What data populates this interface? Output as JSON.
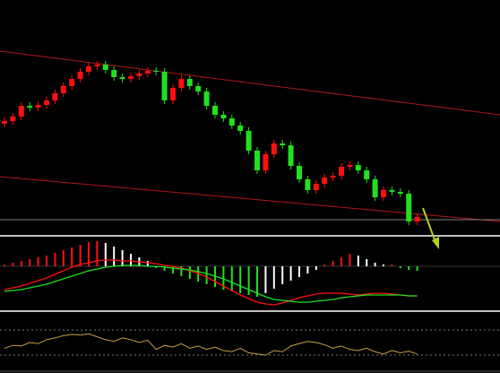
{
  "chart_data": [
    {
      "type": "candlestick",
      "ylim": [
        0,
        262
      ],
      "up_color": "#ff1010",
      "down_color": "#20e020",
      "open": [
        124,
        127,
        132,
        144,
        142,
        145,
        150,
        158,
        166,
        174,
        182,
        188,
        190,
        184,
        176,
        174,
        177,
        180,
        183,
        182,
        150,
        164,
        174,
        166,
        160,
        144,
        134,
        130,
        122,
        116,
        94,
        72,
        90,
        102,
        100,
        77,
        62,
        50,
        57,
        64,
        66,
        76,
        78,
        72,
        62,
        42,
        50,
        48,
        46,
        15
      ],
      "high": [
        131,
        136,
        148,
        148,
        149,
        154,
        162,
        170,
        178,
        186,
        192,
        194,
        194,
        188,
        180,
        181,
        184,
        187,
        187,
        186,
        168,
        178,
        178,
        170,
        164,
        148,
        138,
        134,
        126,
        120,
        98,
        94,
        106,
        106,
        104,
        81,
        66,
        61,
        68,
        70,
        80,
        82,
        82,
        76,
        66,
        54,
        54,
        52,
        50,
        24
      ],
      "low": [
        120,
        123,
        128,
        138,
        138,
        141,
        146,
        154,
        162,
        170,
        178,
        184,
        180,
        172,
        170,
        170,
        173,
        176,
        178,
        146,
        146,
        160,
        162,
        156,
        140,
        130,
        126,
        118,
        112,
        90,
        68,
        68,
        86,
        96,
        73,
        58,
        46,
        46,
        53,
        60,
        62,
        72,
        68,
        58,
        38,
        38,
        44,
        42,
        11,
        11
      ],
      "close": [
        127,
        132,
        144,
        142,
        145,
        150,
        158,
        166,
        174,
        182,
        188,
        190,
        184,
        176,
        174,
        177,
        180,
        183,
        182,
        150,
        164,
        174,
        166,
        160,
        144,
        134,
        130,
        122,
        116,
        94,
        72,
        90,
        102,
        100,
        77,
        62,
        50,
        57,
        64,
        66,
        76,
        78,
        72,
        62,
        42,
        50,
        48,
        46,
        15,
        20
      ]
    },
    {
      "type": "macd",
      "ylim": [
        -48,
        32
      ],
      "rise_color": "#ff1010",
      "fall_color": "#ffffff",
      "neg_color": "#20e020",
      "histogram": [
        2,
        4,
        6,
        8,
        10,
        12,
        15,
        18,
        21,
        24,
        27,
        28,
        26,
        22,
        18,
        14,
        10,
        6,
        -2,
        -5,
        -8,
        -11,
        -14,
        -17,
        -20,
        -23,
        -26,
        -28,
        -30,
        -32,
        -34,
        -30,
        -25,
        -20,
        -16,
        -12,
        -8,
        -4,
        2,
        6,
        10,
        14,
        12,
        8,
        4,
        2,
        2,
        -2,
        -4,
        -5
      ],
      "series": [
        {
          "color": "#ff1010",
          "values": [
            -26,
            -24,
            -22,
            -19,
            -16,
            -13,
            -9,
            -5,
            -1,
            2,
            4,
            6,
            7,
            7,
            6,
            6,
            5,
            4,
            3,
            1,
            0,
            -2,
            -5,
            -8,
            -12,
            -17,
            -22,
            -27,
            -32,
            -36,
            -40,
            -42,
            -43,
            -41,
            -38,
            -35,
            -33,
            -31,
            -30,
            -30,
            -30,
            -31,
            -32,
            -31,
            -30,
            -30,
            -31,
            -32,
            -33,
            -33
          ]
        },
        {
          "color": "#20e020",
          "values": [
            -28,
            -27,
            -26,
            -24,
            -22,
            -20,
            -17,
            -14,
            -11,
            -8,
            -5,
            -3,
            -1,
            0,
            1,
            1,
            1,
            0,
            0,
            -1,
            -2,
            -3,
            -4,
            -6,
            -8,
            -11,
            -14,
            -18,
            -22,
            -26,
            -30,
            -34,
            -37,
            -38,
            -39,
            -40,
            -40,
            -39,
            -38,
            -37,
            -35,
            -34,
            -33,
            -32,
            -32,
            -32,
            -32,
            -32,
            -33,
            -33
          ]
        }
      ]
    },
    {
      "type": "line",
      "ylim": [
        0,
        100
      ],
      "color": "#c8a040",
      "values": [
        40,
        45,
        44,
        50,
        48,
        55,
        58,
        62,
        64,
        63,
        65,
        60,
        55,
        52,
        58,
        55,
        50,
        54,
        38,
        45,
        42,
        48,
        40,
        44,
        38,
        42,
        36,
        34,
        40,
        32,
        30,
        28,
        36,
        34,
        44,
        48,
        52,
        50,
        46,
        40,
        44,
        38,
        36,
        40,
        34,
        30,
        36,
        32,
        35,
        30
      ]
    }
  ]
}
